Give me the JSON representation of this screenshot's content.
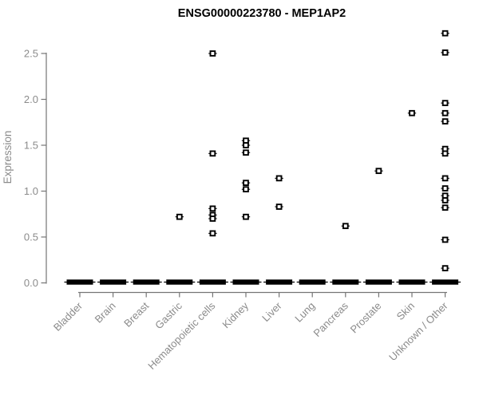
{
  "colors": {
    "background": "#ffffff",
    "title_text": "#000000",
    "axis_line": "#757575",
    "axis_text": "#8b8b8b",
    "point": "#000000"
  },
  "chart_data": {
    "type": "scatter",
    "title": "ENSG00000223780 - MEP1AP2",
    "xlabel": "",
    "ylabel": "Expression",
    "ylim": [
      0,
      2.75
    ],
    "yticks": [
      "0.0",
      "0.5",
      "1.0",
      "1.5",
      "2.0",
      "2.5"
    ],
    "ytick_values": [
      0,
      0.5,
      1.0,
      1.5,
      2.0,
      2.5
    ],
    "grid": false,
    "legend": "none",
    "marker": "small-black-square",
    "categories": [
      "Bladder",
      "Brain",
      "Breast",
      "Gastric",
      "Hematopoietic cells",
      "Kidney",
      "Liver",
      "Lung",
      "Pancreas",
      "Prostate",
      "Skin",
      "Unknown / Other"
    ],
    "points_by_category": [
      [],
      [],
      [],
      [
        0.72
      ],
      [
        2.5,
        1.41,
        0.81,
        0.74,
        0.7,
        0.54
      ],
      [
        1.55,
        1.5,
        1.42,
        1.09,
        1.02,
        0.72
      ],
      [
        1.14,
        0.83
      ],
      [],
      [
        0.62
      ],
      [
        1.22
      ],
      [
        1.85
      ],
      [
        2.72,
        2.51,
        1.96,
        1.85,
        1.76,
        1.46,
        1.41,
        1.14,
        1.03,
        0.95,
        0.9,
        0.82,
        0.47,
        0.16
      ]
    ],
    "zero_cluster_bar": {
      "value": 0.0,
      "present_in_all_categories": true,
      "description": "thick black bar of many overlapping data points at expression 0 under every category"
    }
  }
}
